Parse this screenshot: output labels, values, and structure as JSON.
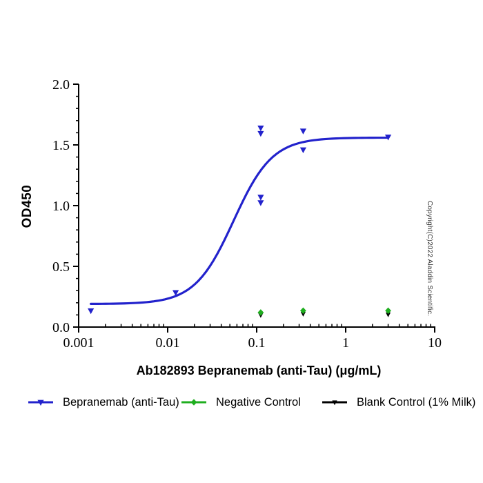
{
  "figure": {
    "copyright": "Copyright(C)2022 Aladdin Scientific."
  },
  "chart_data": {
    "type": "scatter",
    "x_scale": "log",
    "xlabel": "Ab182893 Bepranemab (anti-Tau) (μg/mL)",
    "ylabel": "OD450",
    "xlim": [
      0.001,
      10
    ],
    "ylim": [
      0.0,
      2.0
    ],
    "x_ticks": [
      0.001,
      0.01,
      0.1,
      1,
      10
    ],
    "x_tick_labels": [
      "0.001",
      "0.01",
      "0.1",
      "1",
      "10"
    ],
    "y_ticks": [
      0.0,
      0.5,
      1.0,
      1.5,
      2.0
    ],
    "y_tick_labels": [
      "0.0",
      "0.5",
      "1.0",
      "1.5",
      "2.0"
    ],
    "y_minor_step": 0.1,
    "grid": false,
    "legend_position": "bottom",
    "axis_color": "#000000",
    "series": [
      {
        "name": "Bepranemab (anti-Tau)",
        "color": "#2222cc",
        "marker": "triangle-down",
        "points": [
          [
            0.00137,
            0.135
          ],
          [
            0.0123,
            0.285
          ],
          [
            0.111,
            1.025
          ],
          [
            0.111,
            1.07
          ],
          [
            0.111,
            1.595
          ],
          [
            0.111,
            1.64
          ],
          [
            0.333,
            1.46
          ],
          [
            0.333,
            1.615
          ],
          [
            3.0,
            1.565
          ]
        ],
        "fit_curve": {
          "model": "4PL",
          "bottom": 0.19,
          "top": 1.56,
          "ec50": 0.055,
          "hill": 2.0,
          "x_start": 0.00137,
          "x_end": 3.0
        }
      },
      {
        "name": "Negative Control",
        "color": "#1fae1f",
        "marker": "diamond",
        "points": [
          [
            0.111,
            0.12
          ],
          [
            0.333,
            0.135
          ],
          [
            3.0,
            0.135
          ]
        ]
      },
      {
        "name": "Blank Control (1% Milk)",
        "color": "#000000",
        "marker": "triangle-down-small",
        "points": [
          [
            0.111,
            0.1
          ],
          [
            0.333,
            0.11
          ],
          [
            3.0,
            0.105
          ]
        ]
      }
    ]
  }
}
